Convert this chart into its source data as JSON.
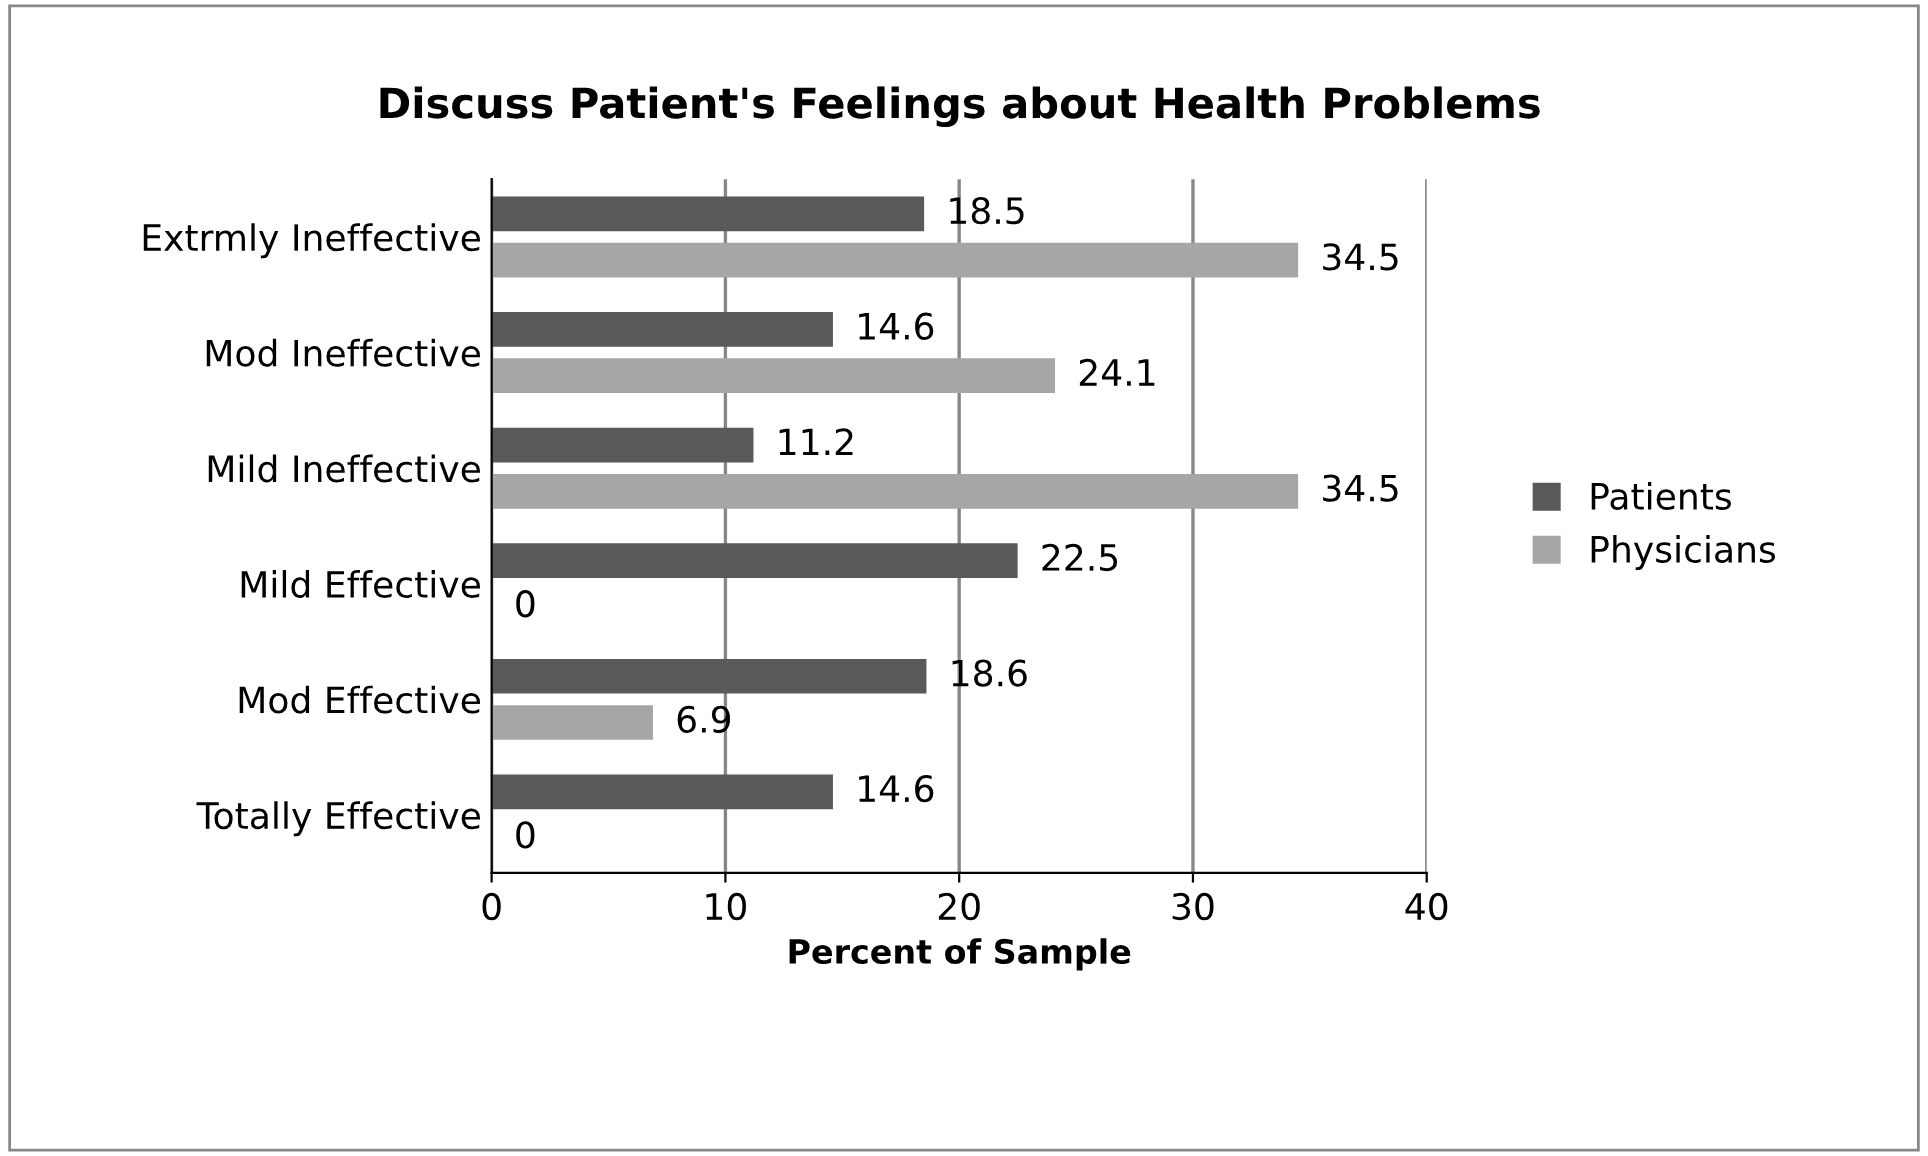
{
  "chart_data": {
    "type": "bar",
    "orientation": "horizontal",
    "title": "Discuss Patient's Feelings about Health Problems",
    "xlabel": "Percent of Sample",
    "categories": [
      "Extrmly Ineffective",
      "Mod Ineffective",
      "Mild Ineffective",
      "Mild Effective",
      "Mod Effective",
      "Totally Effective"
    ],
    "series": [
      {
        "name": "Patients",
        "color": "#595959",
        "values": [
          18.5,
          14.6,
          11.2,
          22.5,
          18.6,
          14.6
        ]
      },
      {
        "name": "Physicians",
        "color": "#a6a6a6",
        "values": [
          34.5,
          24.1,
          34.5,
          0,
          6.9,
          0
        ]
      }
    ],
    "xlim": [
      0,
      40
    ],
    "xticks": [
      0,
      10,
      20,
      30,
      40
    ],
    "grid": "x",
    "legend": "right",
    "data_labels": true
  }
}
